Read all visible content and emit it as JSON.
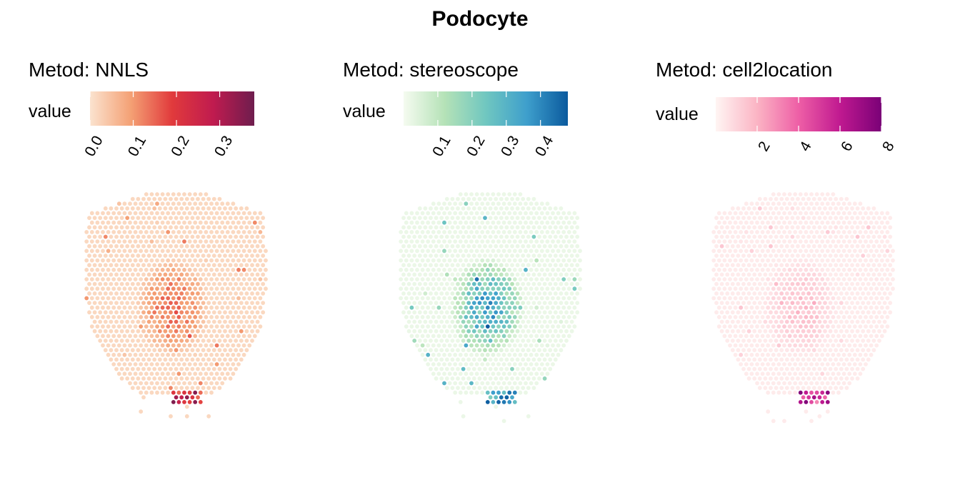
{
  "title": "Podocyte",
  "chart_data": [
    {
      "type": "heatmap",
      "subtype": "spatial-spot-map",
      "title": "Metod: NNLS",
      "legend": {
        "title": "value",
        "placement": "top",
        "ticks": [
          "0.0",
          "0.1",
          "0.2",
          "0.3"
        ],
        "tick_values": [
          0.0,
          0.1,
          0.2,
          0.3
        ],
        "range": [
          0,
          0.38
        ],
        "colormap": "rocket_r-orange-red",
        "colors": [
          "#fbe3cf",
          "#f4a074",
          "#e13a3c",
          "#c01b4f",
          "#6e1d4e"
        ]
      },
      "hotspots": [
        {
          "region": "center",
          "value": 0.12
        },
        {
          "region": "bottom",
          "value": 0.35
        }
      ]
    },
    {
      "type": "heatmap",
      "subtype": "spatial-spot-map",
      "title": "Metod: stereoscope",
      "legend": {
        "title": "value",
        "ticks": [
          "0.1",
          "0.2",
          "0.3",
          "0.4"
        ],
        "tick_values": [
          0.1,
          0.2,
          0.3,
          0.4
        ],
        "range": [
          0,
          0.48
        ],
        "colormap": "GnBu",
        "colors": [
          "#f5fbf0",
          "#b5e2b7",
          "#70c7c0",
          "#3e9fcc",
          "#0b5a9e"
        ]
      },
      "hotspots": [
        {
          "region": "center",
          "value": 0.3
        },
        {
          "region": "bottom",
          "value": 0.45
        }
      ]
    },
    {
      "type": "heatmap",
      "subtype": "spatial-spot-map",
      "title": "Metod: cell2location",
      "legend": {
        "title": "value",
        "ticks": [
          "2",
          "4",
          "6",
          "8"
        ],
        "tick_values": [
          2,
          4,
          6,
          8
        ],
        "range": [
          0,
          8
        ],
        "colormap": "RdPu",
        "colors": [
          "#fff5f3",
          "#fbb4c4",
          "#ee5fa6",
          "#c01990",
          "#7a0177"
        ]
      },
      "hotspots": [
        {
          "region": "center",
          "value": 1.2
        },
        {
          "region": "bottom",
          "value": 7.5
        }
      ]
    }
  ]
}
